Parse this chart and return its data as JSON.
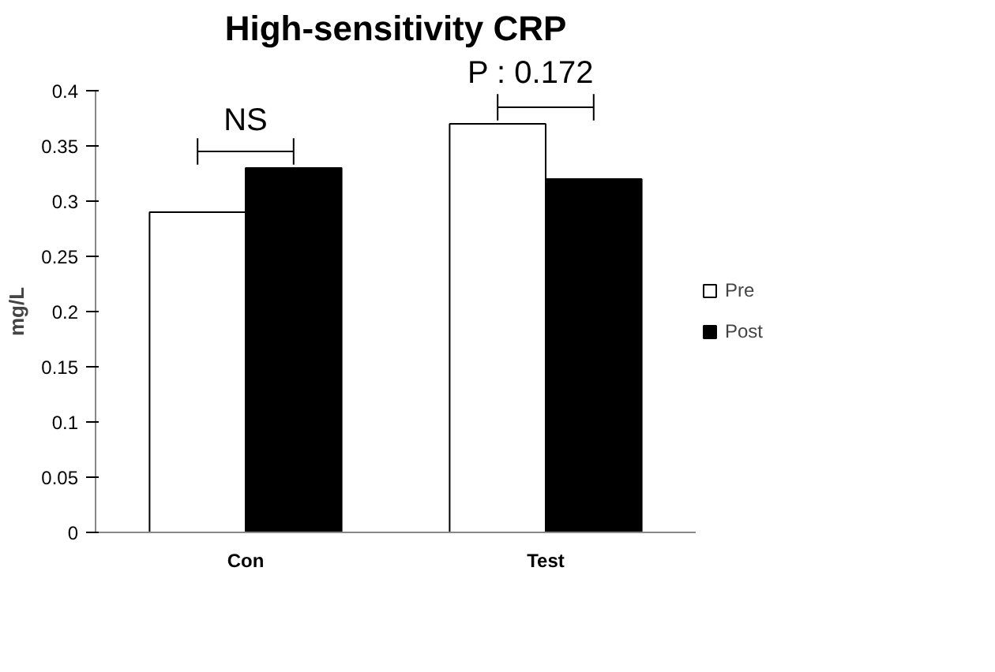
{
  "chart_data": {
    "type": "bar",
    "title": "High-sensitivity CRP",
    "ylabel": "mg/L",
    "categories": [
      "Con",
      "Test"
    ],
    "series": [
      {
        "name": "Pre",
        "color": "#ffffff",
        "values": [
          0.29,
          0.37
        ]
      },
      {
        "name": "Post",
        "color": "#000000",
        "values": [
          0.33,
          0.32
        ]
      }
    ],
    "ylim": [
      0,
      0.4
    ],
    "yticks": [
      0,
      0.05,
      0.1,
      0.15,
      0.2,
      0.25,
      0.3,
      0.35,
      0.4
    ],
    "grid": false,
    "legend": "right",
    "annotations": [
      "NS",
      "P : 0.172"
    ]
  }
}
